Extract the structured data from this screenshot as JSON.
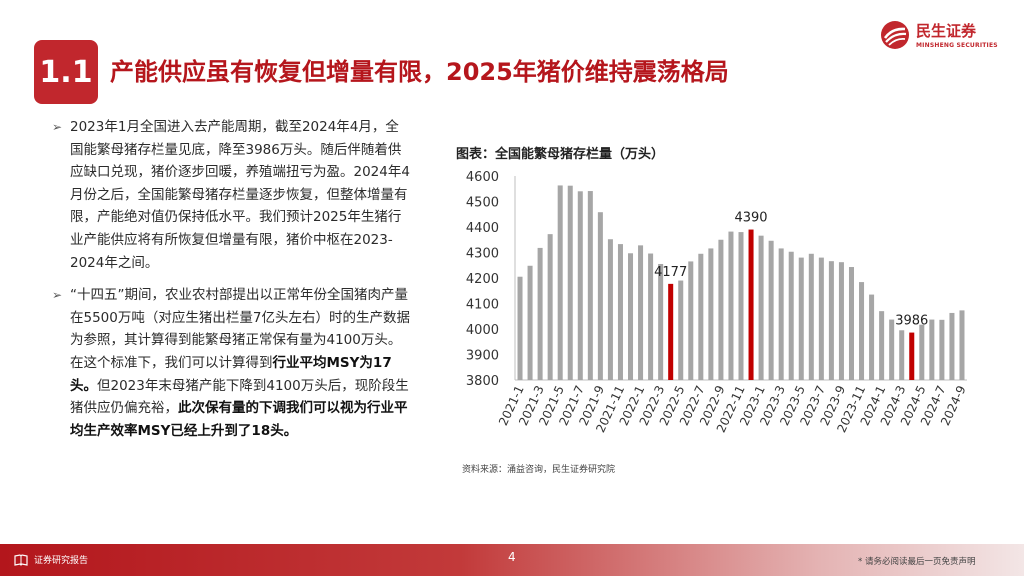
{
  "header": {
    "section_number": "1.1",
    "title": "产能供应虽有恢复但增量有限，2025年猪价维持震荡格局",
    "logo_cn": "民生证券",
    "logo_en": "MINSHENG SECURITIES"
  },
  "bullets": [
    {
      "segments": [
        {
          "text": "2023年1月全国进入去产能周期，截至2024年4月，全国能繁母猪存栏量见底，降至3986万头。随后伴随着供应缺口兑现，猪价逐步回暖，养殖端扭亏为盈。2024年4月份之后，全国能繁母猪存栏量逐步恢复，但整体增量有限，产能绝对值仍保持低水平。我们预计2025年生猪行业产能供应将有所恢复但增量有限，猪价中枢在2023-2024年之间。",
          "bold": false
        }
      ]
    },
    {
      "segments": [
        {
          "text": "“十四五”期间，农业农村部提出以正常年份全国猪肉产量在5500万吨（对应生猪出栏量7亿头左右）时的生产数据为参照，其计算得到能繁母猪正常保有量为4100万头。在这个标准下，我们可以计算得到",
          "bold": false
        },
        {
          "text": "行业平均MSY为17头。",
          "bold": true
        },
        {
          "text": "但2023年末母猪产能下降到4100万头后，现阶段生猪供应仍偏充裕，",
          "bold": false
        },
        {
          "text": "此次保有量的下调我们可以视为行业平均生产效率MSY已经上升到了18头。",
          "bold": true
        }
      ]
    }
  ],
  "chart_title": "图表：全国能繁母猪存栏量（万头）",
  "chart_source": "资料来源：涌益咨询，民生证券研究院",
  "chart_data": {
    "type": "bar",
    "title": "图表：全国能繁母猪存栏量（万头）",
    "ylim": [
      3800,
      4600
    ],
    "yticks": [
      3800,
      3900,
      4000,
      4100,
      4200,
      4300,
      4400,
      4500,
      4600
    ],
    "grid": false,
    "bar_color": "#a6a6a6",
    "highlight_color": "#c00000",
    "categories": [
      "2021-1",
      "2021-2",
      "2021-3",
      "2021-4",
      "2021-5",
      "2021-6",
      "2021-7",
      "2021-8",
      "2021-9",
      "2021-10",
      "2021-11",
      "2021-12",
      "2022-1",
      "2022-2",
      "2022-3",
      "2022-4",
      "2022-5",
      "2022-6",
      "2022-7",
      "2022-8",
      "2022-9",
      "2022-10",
      "2022-11",
      "2022-12",
      "2023-1",
      "2023-2",
      "2023-3",
      "2023-4",
      "2023-5",
      "2023-6",
      "2023-7",
      "2023-8",
      "2023-9",
      "2023-10",
      "2023-11",
      "2023-12",
      "2024-1",
      "2024-2",
      "2024-3",
      "2024-4",
      "2024-5",
      "2024-6",
      "2024-7",
      "2024-8",
      "2024-9"
    ],
    "visible_tick_labels": [
      "2021-1",
      "2021-3",
      "2021-5",
      "2021-7",
      "2021-9",
      "2021-11",
      "2022-1",
      "2022-3",
      "2022-5",
      "2022-7",
      "2022-9",
      "2022-11",
      "2023-1",
      "2023-3",
      "2023-5",
      "2023-7",
      "2023-9",
      "2023-11",
      "2024-1",
      "2024-3",
      "2024-5",
      "2024-7",
      "2024-9"
    ],
    "values": [
      4205,
      4248,
      4318,
      4372,
      4563,
      4562,
      4540,
      4541,
      4458,
      4352,
      4333,
      4297,
      4328,
      4296,
      4255,
      4177,
      4190,
      4265,
      4295,
      4316,
      4350,
      4382,
      4380,
      4390,
      4366,
      4346,
      4316,
      4303,
      4280,
      4295,
      4280,
      4266,
      4262,
      4243,
      4184,
      4135,
      4070,
      4037,
      3995,
      3986,
      4017,
      4037,
      4036,
      4063,
      4073
    ],
    "highlight_indices": [
      15,
      23,
      39
    ],
    "data_labels": [
      {
        "index": 15,
        "text": "4177"
      },
      {
        "index": 23,
        "text": "4390"
      },
      {
        "index": 39,
        "text": "3986"
      }
    ]
  },
  "footer": {
    "left_label": "证券研究报告",
    "page_number": "4",
    "disclaimer": "* 请务必阅读最后一页免责声明"
  }
}
